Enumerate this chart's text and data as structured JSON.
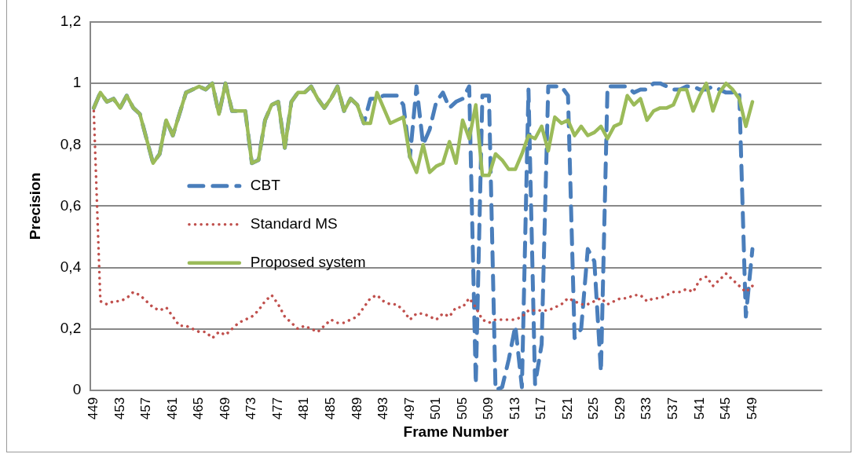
{
  "chart_data": {
    "type": "line",
    "xlabel": "Frame Number",
    "ylabel": "Precision",
    "categories": [
      "449",
      null,
      null,
      null,
      "453",
      null,
      null,
      null,
      "457",
      null,
      null,
      null,
      "461",
      null,
      null,
      null,
      "465",
      null,
      null,
      null,
      "469",
      null,
      null,
      null,
      "473",
      null,
      null,
      null,
      "477",
      null,
      null,
      null,
      "481",
      null,
      null,
      null,
      "485",
      null,
      null,
      null,
      "489",
      null,
      null,
      null,
      "493",
      null,
      null,
      null,
      "497",
      null,
      null,
      null,
      "501",
      null,
      null,
      null,
      "505",
      null,
      null,
      null,
      "509",
      null,
      null,
      null,
      "513",
      null,
      null,
      null,
      "517",
      null,
      null,
      null,
      "521",
      null,
      null,
      null,
      "525",
      null,
      null,
      null,
      "529",
      null,
      null,
      null,
      "533",
      null,
      null,
      null,
      "537",
      null,
      null,
      null,
      "541",
      null,
      null,
      null,
      "545",
      null,
      null,
      null,
      "549",
      null,
      null,
      null,
      null,
      null,
      null,
      null,
      null,
      null,
      null
    ],
    "series": [
      {
        "name": "CBT",
        "color": "#4a7ebb",
        "line_style": "dashed",
        "values": [
          0.92,
          0.97,
          0.94,
          0.95,
          0.92,
          0.96,
          0.92,
          0.9,
          0.82,
          0.74,
          0.77,
          0.88,
          0.83,
          0.9,
          0.97,
          0.98,
          0.99,
          0.98,
          1.0,
          0.9,
          1.0,
          0.91,
          0.91,
          0.91,
          0.74,
          0.75,
          0.88,
          0.93,
          0.94,
          0.79,
          0.94,
          0.97,
          0.97,
          0.99,
          0.95,
          0.92,
          0.95,
          0.99,
          0.91,
          0.95,
          0.93,
          0.87,
          0.95,
          0.95,
          0.96,
          0.96,
          0.96,
          0.93,
          0.76,
          0.99,
          0.8,
          0.85,
          0.94,
          0.97,
          0.92,
          0.94,
          0.95,
          0.99,
          0.02,
          0.96,
          0.96,
          0.0,
          0.01,
          0.1,
          0.21,
          0.01,
          0.98,
          0.02,
          0.15,
          0.99,
          0.99,
          0.99,
          0.96,
          0.17,
          0.2,
          0.46,
          0.42,
          0.06,
          0.99,
          0.99,
          0.99,
          0.99,
          0.97,
          0.98,
          0.98,
          1.0,
          1.0,
          0.99,
          0.98,
          0.98,
          0.99,
          0.99,
          0.98,
          0.98,
          0.99,
          0.98,
          0.97,
          0.97,
          0.97,
          0.24,
          0.46,
          null,
          null,
          null,
          null,
          null,
          null,
          null,
          null,
          null,
          null
        ]
      },
      {
        "name": "Standard MS",
        "color": "#c0504d",
        "line_style": "dotted",
        "values": [
          0.91,
          0.29,
          0.28,
          0.29,
          0.29,
          0.3,
          0.32,
          0.31,
          0.29,
          0.27,
          0.26,
          0.27,
          0.24,
          0.21,
          0.21,
          0.2,
          0.19,
          0.19,
          0.17,
          0.19,
          0.18,
          0.2,
          0.22,
          0.23,
          0.24,
          0.26,
          0.29,
          0.31,
          0.28,
          0.24,
          0.22,
          0.2,
          0.21,
          0.2,
          0.19,
          0.21,
          0.23,
          0.22,
          0.22,
          0.23,
          0.24,
          0.27,
          0.3,
          0.31,
          0.29,
          0.28,
          0.28,
          0.26,
          0.23,
          0.25,
          0.25,
          0.24,
          0.23,
          0.25,
          0.24,
          0.27,
          0.27,
          0.3,
          0.27,
          0.23,
          0.22,
          0.23,
          0.23,
          0.23,
          0.23,
          0.24,
          0.26,
          0.26,
          0.26,
          0.26,
          0.27,
          0.28,
          0.3,
          0.29,
          0.28,
          0.28,
          0.29,
          0.3,
          0.28,
          0.29,
          0.3,
          0.3,
          0.31,
          0.31,
          0.29,
          0.3,
          0.3,
          0.31,
          0.32,
          0.32,
          0.33,
          0.32,
          0.36,
          0.37,
          0.34,
          0.36,
          0.38,
          0.36,
          0.34,
          0.32,
          0.34,
          null,
          null,
          null,
          null,
          null,
          null,
          null,
          null,
          null,
          null
        ]
      },
      {
        "name": "Proposed system",
        "color": "#9bbb59",
        "line_style": "solid",
        "values": [
          0.92,
          0.97,
          0.94,
          0.95,
          0.92,
          0.96,
          0.92,
          0.9,
          0.82,
          0.74,
          0.77,
          0.88,
          0.83,
          0.9,
          0.97,
          0.98,
          0.99,
          0.98,
          1.0,
          0.9,
          1.0,
          0.91,
          0.91,
          0.91,
          0.74,
          0.75,
          0.88,
          0.93,
          0.94,
          0.79,
          0.94,
          0.97,
          0.97,
          0.99,
          0.95,
          0.92,
          0.95,
          0.99,
          0.91,
          0.95,
          0.93,
          0.87,
          0.87,
          0.97,
          0.92,
          0.87,
          0.88,
          0.89,
          0.76,
          0.71,
          0.8,
          0.71,
          0.73,
          0.74,
          0.81,
          0.74,
          0.88,
          0.82,
          0.93,
          0.7,
          0.7,
          0.77,
          0.75,
          0.72,
          0.72,
          0.77,
          0.83,
          0.82,
          0.86,
          0.78,
          0.89,
          0.87,
          0.88,
          0.83,
          0.86,
          0.83,
          0.84,
          0.86,
          0.82,
          0.86,
          0.87,
          0.96,
          0.93,
          0.95,
          0.88,
          0.91,
          0.92,
          0.92,
          0.93,
          0.98,
          0.98,
          0.91,
          0.96,
          1.0,
          0.91,
          0.97,
          1.0,
          0.98,
          0.95,
          0.86,
          0.94,
          null,
          null,
          null,
          null,
          null,
          null,
          null,
          null,
          null,
          null
        ]
      }
    ],
    "ylim": [
      0,
      1.2
    ],
    "yticks": [
      0,
      {
        "value": 0.2,
        "label": "0,2"
      },
      {
        "value": 0.4,
        "label": "0,4"
      },
      {
        "value": 0.6,
        "label": "0,6"
      },
      {
        "value": 0.8,
        "label": "0,8"
      },
      1,
      {
        "value": 1.2,
        "label": "1,2"
      }
    ],
    "grid": "y",
    "legend": "left",
    "marker": "none"
  }
}
